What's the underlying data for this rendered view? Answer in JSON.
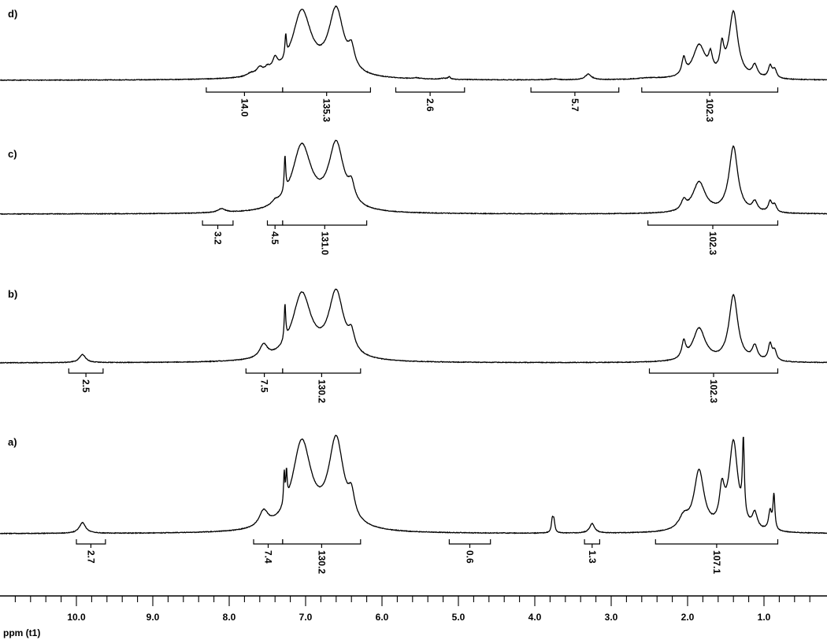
{
  "chart_data": {
    "type": "line",
    "title": "",
    "xlabel": "ppm (t1)",
    "ylabel": "",
    "xlim": [
      10.9,
      0.3
    ],
    "x_reversed": true,
    "grid": false,
    "legend": "none",
    "x_ticks": [
      10.0,
      9.0,
      8.0,
      7.0,
      6.0,
      5.0,
      4.0,
      3.0,
      2.0,
      1.0
    ],
    "x_tick_labels": [
      "10.0",
      "9.0",
      "8.0",
      "7.0",
      "6.0",
      "5.0",
      "4.0",
      "3.0",
      "2.0",
      "1.0"
    ],
    "panels": [
      {
        "label": "d)",
        "peaks": [
          {
            "ppm": 7.72,
            "height": 0.06,
            "width": 0.06
          },
          {
            "ppm": 7.6,
            "height": 0.15,
            "width": 0.05
          },
          {
            "ppm": 7.5,
            "height": 0.1,
            "width": 0.04
          },
          {
            "ppm": 7.4,
            "height": 0.25,
            "width": 0.04
          },
          {
            "ppm": 7.26,
            "height": 0.45,
            "width": 0.012
          },
          {
            "ppm": 7.05,
            "height": 1.4,
            "width": 0.15
          },
          {
            "ppm": 6.6,
            "height": 1.4,
            "width": 0.12
          },
          {
            "ppm": 6.4,
            "height": 0.4,
            "width": 0.05
          },
          {
            "ppm": 5.55,
            "height": 0.02,
            "width": 0.06
          },
          {
            "ppm": 5.2,
            "height": 0.02,
            "width": 0.05
          },
          {
            "ppm": 5.12,
            "height": 0.05,
            "width": 0.02
          },
          {
            "ppm": 3.75,
            "height": 0.02,
            "width": 0.06
          },
          {
            "ppm": 3.3,
            "height": 0.12,
            "width": 0.05
          },
          {
            "ppm": 2.5,
            "height": 0.03,
            "width": 0.2
          },
          {
            "ppm": 2.05,
            "height": 0.35,
            "width": 0.03
          },
          {
            "ppm": 1.85,
            "height": 0.7,
            "width": 0.1
          },
          {
            "ppm": 1.7,
            "height": 0.35,
            "width": 0.03
          },
          {
            "ppm": 1.55,
            "height": 0.55,
            "width": 0.03
          },
          {
            "ppm": 1.4,
            "height": 1.4,
            "width": 0.07
          },
          {
            "ppm": 1.12,
            "height": 0.25,
            "width": 0.04
          },
          {
            "ppm": 0.92,
            "height": 0.25,
            "width": 0.03
          },
          {
            "ppm": 0.86,
            "height": 0.18,
            "width": 0.03
          }
        ],
        "integrals": [
          {
            "from": 8.3,
            "to": 7.3,
            "value": "14.0"
          },
          {
            "from": 7.3,
            "to": 6.15,
            "value": "135.3"
          },
          {
            "from": 5.82,
            "to": 4.92,
            "value": "2.6"
          },
          {
            "from": 4.05,
            "to": 2.9,
            "value": "5.7"
          },
          {
            "from": 2.6,
            "to": 0.82,
            "value": "102.3"
          }
        ]
      },
      {
        "label": "c)",
        "peaks": [
          {
            "ppm": 8.1,
            "height": 0.08,
            "width": 0.06
          },
          {
            "ppm": 7.4,
            "height": 0.08,
            "width": 0.05
          },
          {
            "ppm": 7.27,
            "height": 0.75,
            "width": 0.012
          },
          {
            "ppm": 7.05,
            "height": 1.4,
            "width": 0.15
          },
          {
            "ppm": 6.6,
            "height": 1.4,
            "width": 0.12
          },
          {
            "ppm": 6.4,
            "height": 0.35,
            "width": 0.05
          },
          {
            "ppm": 2.05,
            "height": 0.2,
            "width": 0.04
          },
          {
            "ppm": 1.85,
            "height": 0.65,
            "width": 0.1
          },
          {
            "ppm": 1.4,
            "height": 1.4,
            "width": 0.07
          },
          {
            "ppm": 1.12,
            "height": 0.2,
            "width": 0.04
          },
          {
            "ppm": 0.92,
            "height": 0.22,
            "width": 0.03
          },
          {
            "ppm": 0.86,
            "height": 0.15,
            "width": 0.03
          }
        ],
        "integrals": [
          {
            "from": 8.35,
            "to": 7.95,
            "value": "3.2"
          },
          {
            "from": 7.5,
            "to": 7.3,
            "value": "4.5"
          },
          {
            "from": 7.3,
            "to": 6.2,
            "value": "131.0"
          },
          {
            "from": 2.52,
            "to": 0.82,
            "value": "102.3"
          }
        ]
      },
      {
        "label": "b)",
        "peaks": [
          {
            "ppm": 9.92,
            "height": 0.17,
            "width": 0.05
          },
          {
            "ppm": 7.55,
            "height": 0.28,
            "width": 0.06
          },
          {
            "ppm": 7.27,
            "height": 0.75,
            "width": 0.012
          },
          {
            "ppm": 7.05,
            "height": 1.4,
            "width": 0.15
          },
          {
            "ppm": 6.6,
            "height": 1.4,
            "width": 0.12
          },
          {
            "ppm": 6.4,
            "height": 0.35,
            "width": 0.05
          },
          {
            "ppm": 2.05,
            "height": 0.35,
            "width": 0.03
          },
          {
            "ppm": 1.85,
            "height": 0.7,
            "width": 0.1
          },
          {
            "ppm": 1.4,
            "height": 1.4,
            "width": 0.07
          },
          {
            "ppm": 1.12,
            "height": 0.3,
            "width": 0.04
          },
          {
            "ppm": 0.92,
            "height": 0.35,
            "width": 0.03
          },
          {
            "ppm": 0.86,
            "height": 0.2,
            "width": 0.03
          }
        ],
        "integrals": [
          {
            "from": 10.1,
            "to": 9.65,
            "value": "2.5"
          },
          {
            "from": 7.78,
            "to": 7.3,
            "value": "7.5"
          },
          {
            "from": 7.3,
            "to": 6.28,
            "value": "130.2"
          },
          {
            "from": 2.5,
            "to": 0.82,
            "value": "102.3"
          }
        ]
      },
      {
        "label": "a)",
        "peaks": [
          {
            "ppm": 9.92,
            "height": 0.17,
            "width": 0.05
          },
          {
            "ppm": 7.55,
            "height": 0.25,
            "width": 0.07
          },
          {
            "ppm": 7.28,
            "height": 0.5,
            "width": 0.01
          },
          {
            "ppm": 7.25,
            "height": 0.45,
            "width": 0.01
          },
          {
            "ppm": 7.05,
            "height": 1.4,
            "width": 0.15
          },
          {
            "ppm": 6.6,
            "height": 1.4,
            "width": 0.12
          },
          {
            "ppm": 6.4,
            "height": 0.35,
            "width": 0.05
          },
          {
            "ppm": 3.77,
            "height": 0.2,
            "width": 0.015
          },
          {
            "ppm": 3.75,
            "height": 0.18,
            "width": 0.015
          },
          {
            "ppm": 3.25,
            "height": 0.15,
            "width": 0.04
          },
          {
            "ppm": 2.05,
            "height": 0.2,
            "width": 0.08
          },
          {
            "ppm": 1.85,
            "height": 0.95,
            "width": 0.08
          },
          {
            "ppm": 1.55,
            "height": 0.55,
            "width": 0.04
          },
          {
            "ppm": 1.4,
            "height": 1.4,
            "width": 0.07
          },
          {
            "ppm": 1.27,
            "height": 1.2,
            "width": 0.015
          },
          {
            "ppm": 1.12,
            "height": 0.25,
            "width": 0.04
          },
          {
            "ppm": 0.92,
            "height": 0.3,
            "width": 0.025
          },
          {
            "ppm": 0.87,
            "height": 0.55,
            "width": 0.015
          }
        ],
        "integrals": [
          {
            "from": 10.0,
            "to": 9.62,
            "value": "2.7"
          },
          {
            "from": 7.68,
            "to": 7.3,
            "value": "7.4"
          },
          {
            "from": 7.3,
            "to": 6.28,
            "value": "130.2"
          },
          {
            "from": 5.12,
            "to": 4.58,
            "value": "0.6"
          },
          {
            "from": 3.35,
            "to": 3.15,
            "value": "1.3"
          },
          {
            "from": 2.42,
            "to": 0.82,
            "value": "107.1"
          }
        ]
      }
    ]
  }
}
